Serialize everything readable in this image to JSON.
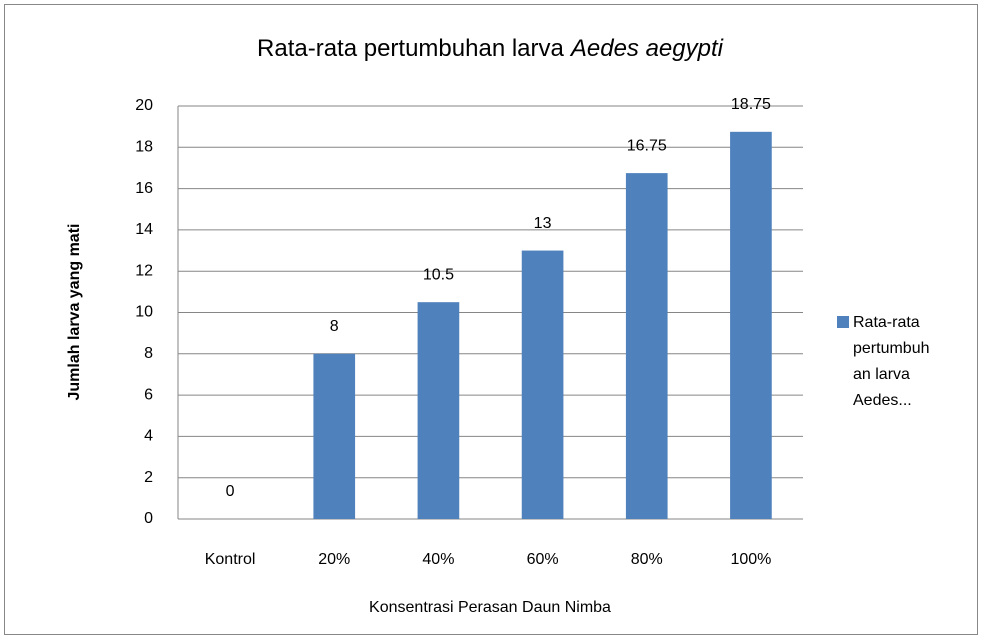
{
  "chart_data": {
    "type": "bar",
    "title": [
      "Rata-rata pertumbuhan larva",
      "Aedes aegypti"
    ],
    "x_label": "Konsentrasi Perasan Daun Nimba",
    "y_label": "Jumlah larva yang mati",
    "categories": [
      "Kontrol",
      "20%",
      "40%",
      "60%",
      "80%",
      "100%"
    ],
    "series": [
      {
        "name": "Rata-rata pertumbuhan larva Aedes...",
        "color": "#4f81bd",
        "values": [
          0,
          8,
          10.5,
          13,
          16.75,
          18.75
        ]
      }
    ],
    "ylim": [
      0,
      20
    ],
    "yticks": [
      0,
      2,
      4,
      6,
      8,
      10,
      12,
      14,
      16,
      18,
      20
    ],
    "grid": true,
    "legend": "right"
  }
}
